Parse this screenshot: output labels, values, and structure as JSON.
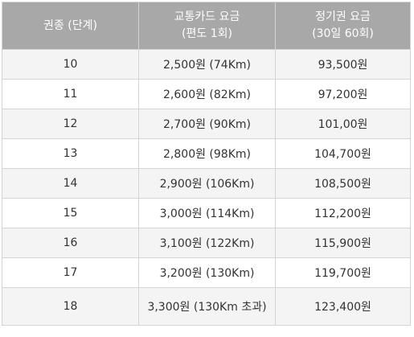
{
  "table": {
    "headers": [
      {
        "line1": "권종 (단계)",
        "line2": ""
      },
      {
        "line1": "교통카드 요금",
        "line2": "(편도 1회)"
      },
      {
        "line1": "정기권 요금",
        "line2": "(30일 60회)"
      }
    ],
    "rows": [
      {
        "level": "10",
        "card_fare": "2,500원 (74Km)",
        "pass_fare": "93,500원"
      },
      {
        "level": "11",
        "card_fare": "2,600원 (82Km)",
        "pass_fare": "97,200원"
      },
      {
        "level": "12",
        "card_fare": "2,700원 (90Km)",
        "pass_fare": "101,00원"
      },
      {
        "level": "13",
        "card_fare": "2,800원 (98Km)",
        "pass_fare": "104,700원"
      },
      {
        "level": "14",
        "card_fare": "2,900원 (106Km)",
        "pass_fare": "108,500원"
      },
      {
        "level": "15",
        "card_fare": "3,000원 (114Km)",
        "pass_fare": "112,200원"
      },
      {
        "level": "16",
        "card_fare": "3,100원 (122Km)",
        "pass_fare": "115,900원"
      },
      {
        "level": "17",
        "card_fare": "3,200원 (130Km)",
        "pass_fare": "119,700원"
      },
      {
        "level": "18",
        "card_fare": "3,300원 (130Km 초과)",
        "pass_fare": "123,400원"
      }
    ]
  },
  "colors": {
    "header_bg": "#a8a8a8",
    "header_text": "#ffffff",
    "row_odd_bg": "#f4f4f4",
    "row_even_bg": "#ffffff",
    "border": "#d4d4d4",
    "cell_text": "#333333"
  }
}
